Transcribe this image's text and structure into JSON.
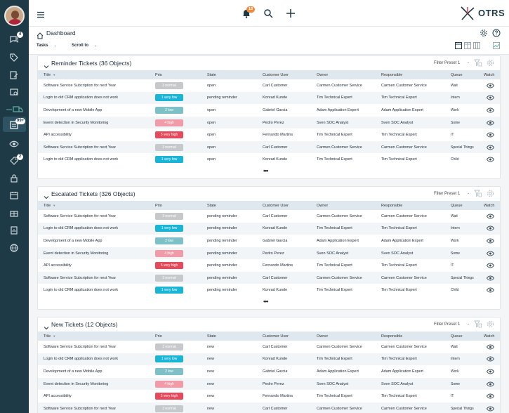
{
  "sidebar": {
    "badges": {
      "notifications": "4",
      "tickets": "99+",
      "watch": "2"
    }
  },
  "topbar": {
    "bell_badge": "18",
    "logo_text": "OTRS"
  },
  "breadcrumb": {
    "title": "Dashboard"
  },
  "toolbar": {
    "tasks_label": "Tasks",
    "scroll_label": "Scroll to"
  },
  "columns": [
    "Title",
    "Prio",
    "State",
    "Customer User",
    "Owner",
    "Responsible",
    "Queue",
    "Watch"
  ],
  "colors": {
    "normal": "#c6c9cc",
    "very_low": "#1ab4d6",
    "low": "#7ec0c8",
    "high": "#f29ba8",
    "very_high": "#e8485a",
    "sidebar": "#1e3a47"
  },
  "widgets": [
    {
      "title": "Reminder Tickets (36 Objects)",
      "filter": "Filter Preset 1",
      "more": "•••",
      "rows": [
        {
          "title": "Software Service Subcription for next Year",
          "prio": "3 normal",
          "prio_key": "normal",
          "state": "open",
          "customer": "Carl Customer",
          "owner": "Carmen Customer Service",
          "responsible": "Carmen Customer Service",
          "queue": "Wait"
        },
        {
          "title": "Login to old CRM application does not work",
          "prio": "1 very low",
          "prio_key": "very_low",
          "state": "pending reminder",
          "customer": "Konrad Kunde",
          "owner": "Tim Technical Expert",
          "responsible": "Tim Technical Expert",
          "queue": "Intern"
        },
        {
          "title": "Development of a new Mobile App",
          "prio": "2 low",
          "prio_key": "low",
          "state": "open",
          "customer": "Gabriel Garcia",
          "owner": "Adam Application Expert",
          "responsible": "Adam Application Expert",
          "queue": "Work"
        },
        {
          "title": "Event detection in Security Monitoring",
          "prio": "4 high",
          "prio_key": "high",
          "state": "open",
          "customer": "Pedro Perez",
          "owner": "Sven SOC Analyst",
          "responsible": "Sven SOC Analyst",
          "queue": "Some"
        },
        {
          "title": "API accessibility",
          "prio": "5 very high",
          "prio_key": "very_high",
          "state": "open",
          "customer": "Fernando Martins",
          "owner": "Tim Technical Expert",
          "responsible": "Tim Technical Expert",
          "queue": "IT"
        },
        {
          "title": "Software Service Subcription for next Year",
          "prio": "3 normal",
          "prio_key": "normal",
          "state": "open",
          "customer": "Carl Customer",
          "owner": "Carmen Customer Service",
          "responsible": "Carmen Customer Service",
          "queue": "Special Things"
        },
        {
          "title": "Login to old CRM application does not work",
          "prio": "1 very low",
          "prio_key": "very_low",
          "state": "open",
          "customer": "Konrad Kunde",
          "owner": "Tim Technical Expert",
          "responsible": "Tim Technical Expert",
          "queue": "Child"
        }
      ]
    },
    {
      "title": "Escalated Tickets (326 Objects)",
      "filter": "Filter Preset 1",
      "more": "•••",
      "rows": [
        {
          "title": "Software Service Subcription for next Year",
          "prio": "3 normal",
          "prio_key": "normal",
          "state": "pending reminder",
          "customer": "Carl Customer",
          "owner": "Carmen Customer Service",
          "responsible": "Carmen Customer Service",
          "queue": "Wait"
        },
        {
          "title": "Login to old CRM application does not work",
          "prio": "1 very low",
          "prio_key": "very_low",
          "state": "pending reminder",
          "customer": "Konrad Kunde",
          "owner": "Tim Technical Expert",
          "responsible": "Tim Technical Expert",
          "queue": "Intern"
        },
        {
          "title": "Development of a new Mobile App",
          "prio": "2 low",
          "prio_key": "low",
          "state": "pending reminder",
          "customer": "Gabriel Garcia",
          "owner": "Adam Application Expert",
          "responsible": "Adam Application Expert",
          "queue": "Work"
        },
        {
          "title": "Event detection in Security Monitoring",
          "prio": "4 high",
          "prio_key": "high",
          "state": "pending reminder",
          "customer": "Pedro Perez",
          "owner": "Sven SOC Analyst",
          "responsible": "Sven SOC Analyst",
          "queue": "Some"
        },
        {
          "title": "API accessibility",
          "prio": "5 very high",
          "prio_key": "very_high",
          "state": "pending reminder",
          "customer": "Fernando Martins",
          "owner": "Tim Technical Expert",
          "responsible": "Tim Technical Expert",
          "queue": "IT"
        },
        {
          "title": "Software Service Subcription for next Year",
          "prio": "3 normal",
          "prio_key": "normal",
          "state": "pending reminder",
          "customer": "Carl Customer",
          "owner": "Carmen Customer Service",
          "responsible": "Carmen Customer Service",
          "queue": "Special Things"
        },
        {
          "title": "Login to old CRM application does not work",
          "prio": "1 very low",
          "prio_key": "very_low",
          "state": "pending reminder",
          "customer": "Konrad Kunde",
          "owner": "Tim Technical Expert",
          "responsible": "Tim Technical Expert",
          "queue": "Child"
        }
      ]
    },
    {
      "title": "New Tickets (12 Objects)",
      "filter": "Filter Preset 1",
      "more": "",
      "rows": [
        {
          "title": "Software Service Subcription for next Year",
          "prio": "3 normal",
          "prio_key": "normal",
          "state": "new",
          "customer": "Carl Customer",
          "owner": "Carmen Customer Service",
          "responsible": "Carmen Customer Service",
          "queue": "Wait"
        },
        {
          "title": "Login to old CRM application does not work",
          "prio": "1 very low",
          "prio_key": "very_low",
          "state": "new",
          "customer": "Konrad Kunde",
          "owner": "Tim Technical Expert",
          "responsible": "Tim Technical Expert",
          "queue": "Intern"
        },
        {
          "title": "Development of a new Mobile App",
          "prio": "2 low",
          "prio_key": "low",
          "state": "new",
          "customer": "Gabriel Garcia",
          "owner": "Adam Application Expert",
          "responsible": "Adam Application Expert",
          "queue": "Work"
        },
        {
          "title": "Event detection in Security Monitoring",
          "prio": "4 high",
          "prio_key": "high",
          "state": "new",
          "customer": "Pedro Perez",
          "owner": "Sven SOC Analyst",
          "responsible": "Sven SOC Analyst",
          "queue": "Some"
        },
        {
          "title": "API accessibility",
          "prio": "5 very high",
          "prio_key": "very_high",
          "state": "new",
          "customer": "Fernando Martins",
          "owner": "Tim Technical Expert",
          "responsible": "Tim Technical Expert",
          "queue": "IT"
        },
        {
          "title": "Software Service Subcription for next Year",
          "prio": "3 normal",
          "prio_key": "normal",
          "state": "new",
          "customer": "Carl Customer",
          "owner": "Carmen Customer Service",
          "responsible": "Carmen Customer Service",
          "queue": "Special Things"
        }
      ]
    }
  ]
}
